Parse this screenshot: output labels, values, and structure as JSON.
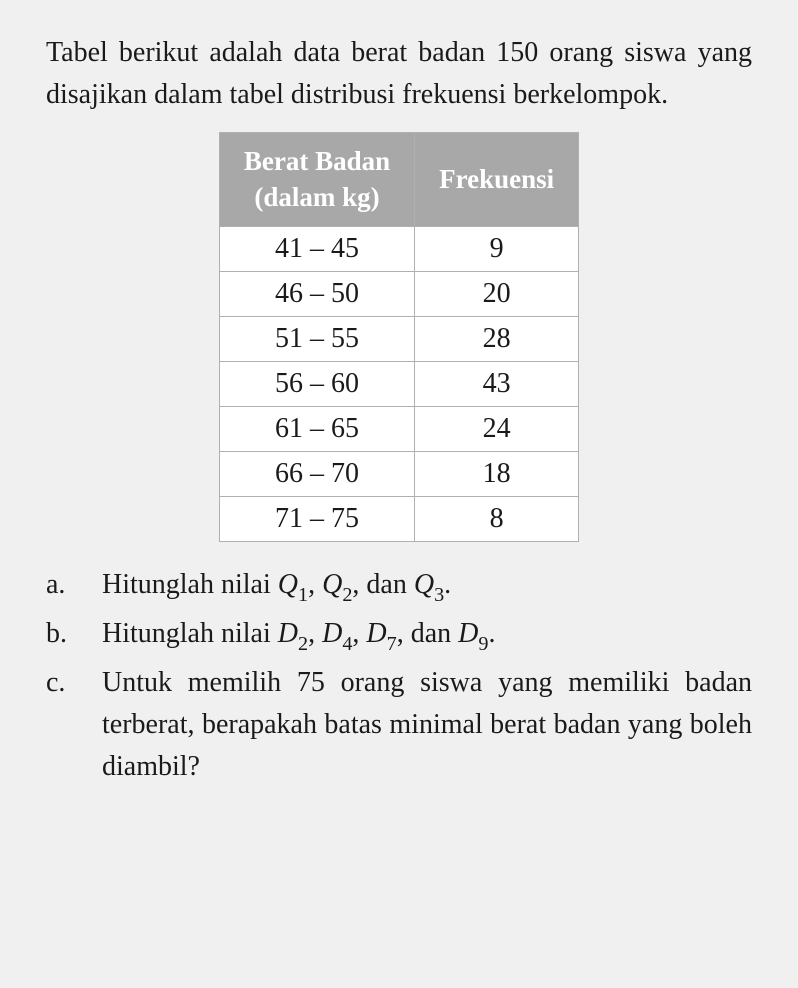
{
  "intro": "Tabel berikut adalah data berat badan 150 orang siswa yang disajikan dalam tabel distribusi frekuensi berkelompok.",
  "table": {
    "header_col1_line1": "Berat Badan",
    "header_col1_line2": "(dalam kg)",
    "header_col2": "Frekuensi",
    "rows": [
      {
        "range": "41 – 45",
        "freq": "9"
      },
      {
        "range": "46 – 50",
        "freq": "20"
      },
      {
        "range": "51 – 55",
        "freq": "28"
      },
      {
        "range": "56 – 60",
        "freq": "43"
      },
      {
        "range": "61 – 65",
        "freq": "24"
      },
      {
        "range": "66 – 70",
        "freq": "18"
      },
      {
        "range": "71 – 75",
        "freq": "8"
      }
    ],
    "header_bg": "#a8a8a8",
    "header_text_color": "#ffffff",
    "cell_bg": "#ffffff",
    "border_color": "#b0b0b0",
    "font_size": 28
  },
  "questions": {
    "a": {
      "label": "a.",
      "prefix": "Hitunglah nilai ",
      "q1_var": "Q",
      "q1_sub": "1",
      "sep1": ", ",
      "q2_var": "Q",
      "q2_sub": "2",
      "sep2": ", dan ",
      "q3_var": "Q",
      "q3_sub": "3",
      "suffix": "."
    },
    "b": {
      "label": "b.",
      "prefix": "Hitunglah nilai ",
      "d2_var": "D",
      "d2_sub": "2",
      "sep1": ", ",
      "d4_var": "D",
      "d4_sub": "4",
      "sep2": ", ",
      "d7_var": "D",
      "d7_sub": "7",
      "sep3": ", dan ",
      "d9_var": "D",
      "d9_sub": "9",
      "suffix": "."
    },
    "c": {
      "label": "c.",
      "text": "Untuk memilih 75 orang siswa yang memiliki badan terberat, berapakah batas minimal berat badan yang boleh diambil?"
    }
  },
  "style": {
    "background_color": "#f0f0f0",
    "text_color": "#1a1a1a",
    "body_fontsize": 28,
    "font_family": "Times New Roman"
  }
}
